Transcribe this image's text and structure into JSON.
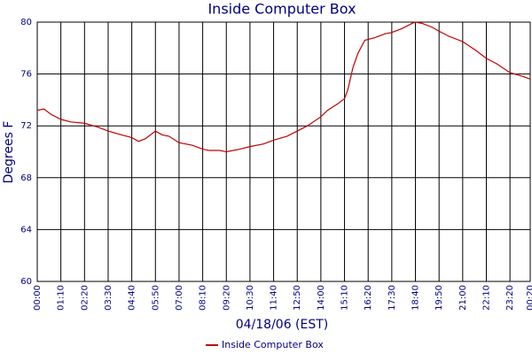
{
  "chart_data": {
    "type": "line",
    "title": "Inside Computer Box",
    "x_label": "04/18/06 (EST)",
    "y_label": "Degrees F",
    "x": [
      0,
      20,
      40,
      70,
      100,
      140,
      180,
      210,
      250,
      280,
      300,
      320,
      340,
      350,
      370,
      390,
      420,
      460,
      490,
      510,
      540,
      560,
      600,
      630,
      670,
      700,
      740,
      770,
      800,
      840,
      860,
      890,
      910,
      920,
      935,
      950,
      970,
      1000,
      1030,
      1050,
      1080,
      1110,
      1120,
      1140,
      1170,
      1190,
      1220,
      1260,
      1300,
      1330,
      1360,
      1400,
      1440,
      1460
    ],
    "series": [
      {
        "name": "Inside Computer Box",
        "color": "#c00000",
        "values": [
          73.2,
          73.3,
          72.9,
          72.5,
          72.3,
          72.2,
          71.9,
          71.6,
          71.3,
          71.1,
          70.8,
          71.0,
          71.4,
          71.6,
          71.3,
          71.2,
          70.7,
          70.5,
          70.2,
          70.1,
          70.1,
          70.0,
          70.2,
          70.4,
          70.6,
          70.9,
          71.2,
          71.6,
          72.0,
          72.7,
          73.2,
          73.7,
          74.1,
          74.8,
          76.5,
          77.6,
          78.6,
          78.8,
          79.1,
          79.2,
          79.5,
          79.9,
          80.0,
          79.9,
          79.6,
          79.3,
          78.9,
          78.5,
          77.8,
          77.2,
          76.8,
          76.1,
          75.8,
          75.6
        ]
      }
    ],
    "xlim": [
      0,
      1460
    ],
    "xticks": [
      {
        "value": 0,
        "label": "00:00"
      },
      {
        "value": 70,
        "label": "01:10"
      },
      {
        "value": 140,
        "label": "02:20"
      },
      {
        "value": 210,
        "label": "03:30"
      },
      {
        "value": 280,
        "label": "04:40"
      },
      {
        "value": 350,
        "label": "05:50"
      },
      {
        "value": 420,
        "label": "07:00"
      },
      {
        "value": 490,
        "label": "08:10"
      },
      {
        "value": 560,
        "label": "09:20"
      },
      {
        "value": 630,
        "label": "10:30"
      },
      {
        "value": 700,
        "label": "11:40"
      },
      {
        "value": 770,
        "label": "12:50"
      },
      {
        "value": 840,
        "label": "14:00"
      },
      {
        "value": 910,
        "label": "15:10"
      },
      {
        "value": 980,
        "label": "16:20"
      },
      {
        "value": 1050,
        "label": "17:30"
      },
      {
        "value": 1120,
        "label": "18:40"
      },
      {
        "value": 1190,
        "label": "19:50"
      },
      {
        "value": 1260,
        "label": "21:00"
      },
      {
        "value": 1330,
        "label": "22:10"
      },
      {
        "value": 1400,
        "label": "23:20"
      },
      {
        "value": 1460,
        "label": "00:20"
      }
    ],
    "ylim": [
      60,
      80
    ],
    "yticks": [
      60,
      64,
      68,
      72,
      76,
      80
    ],
    "grid": true
  }
}
